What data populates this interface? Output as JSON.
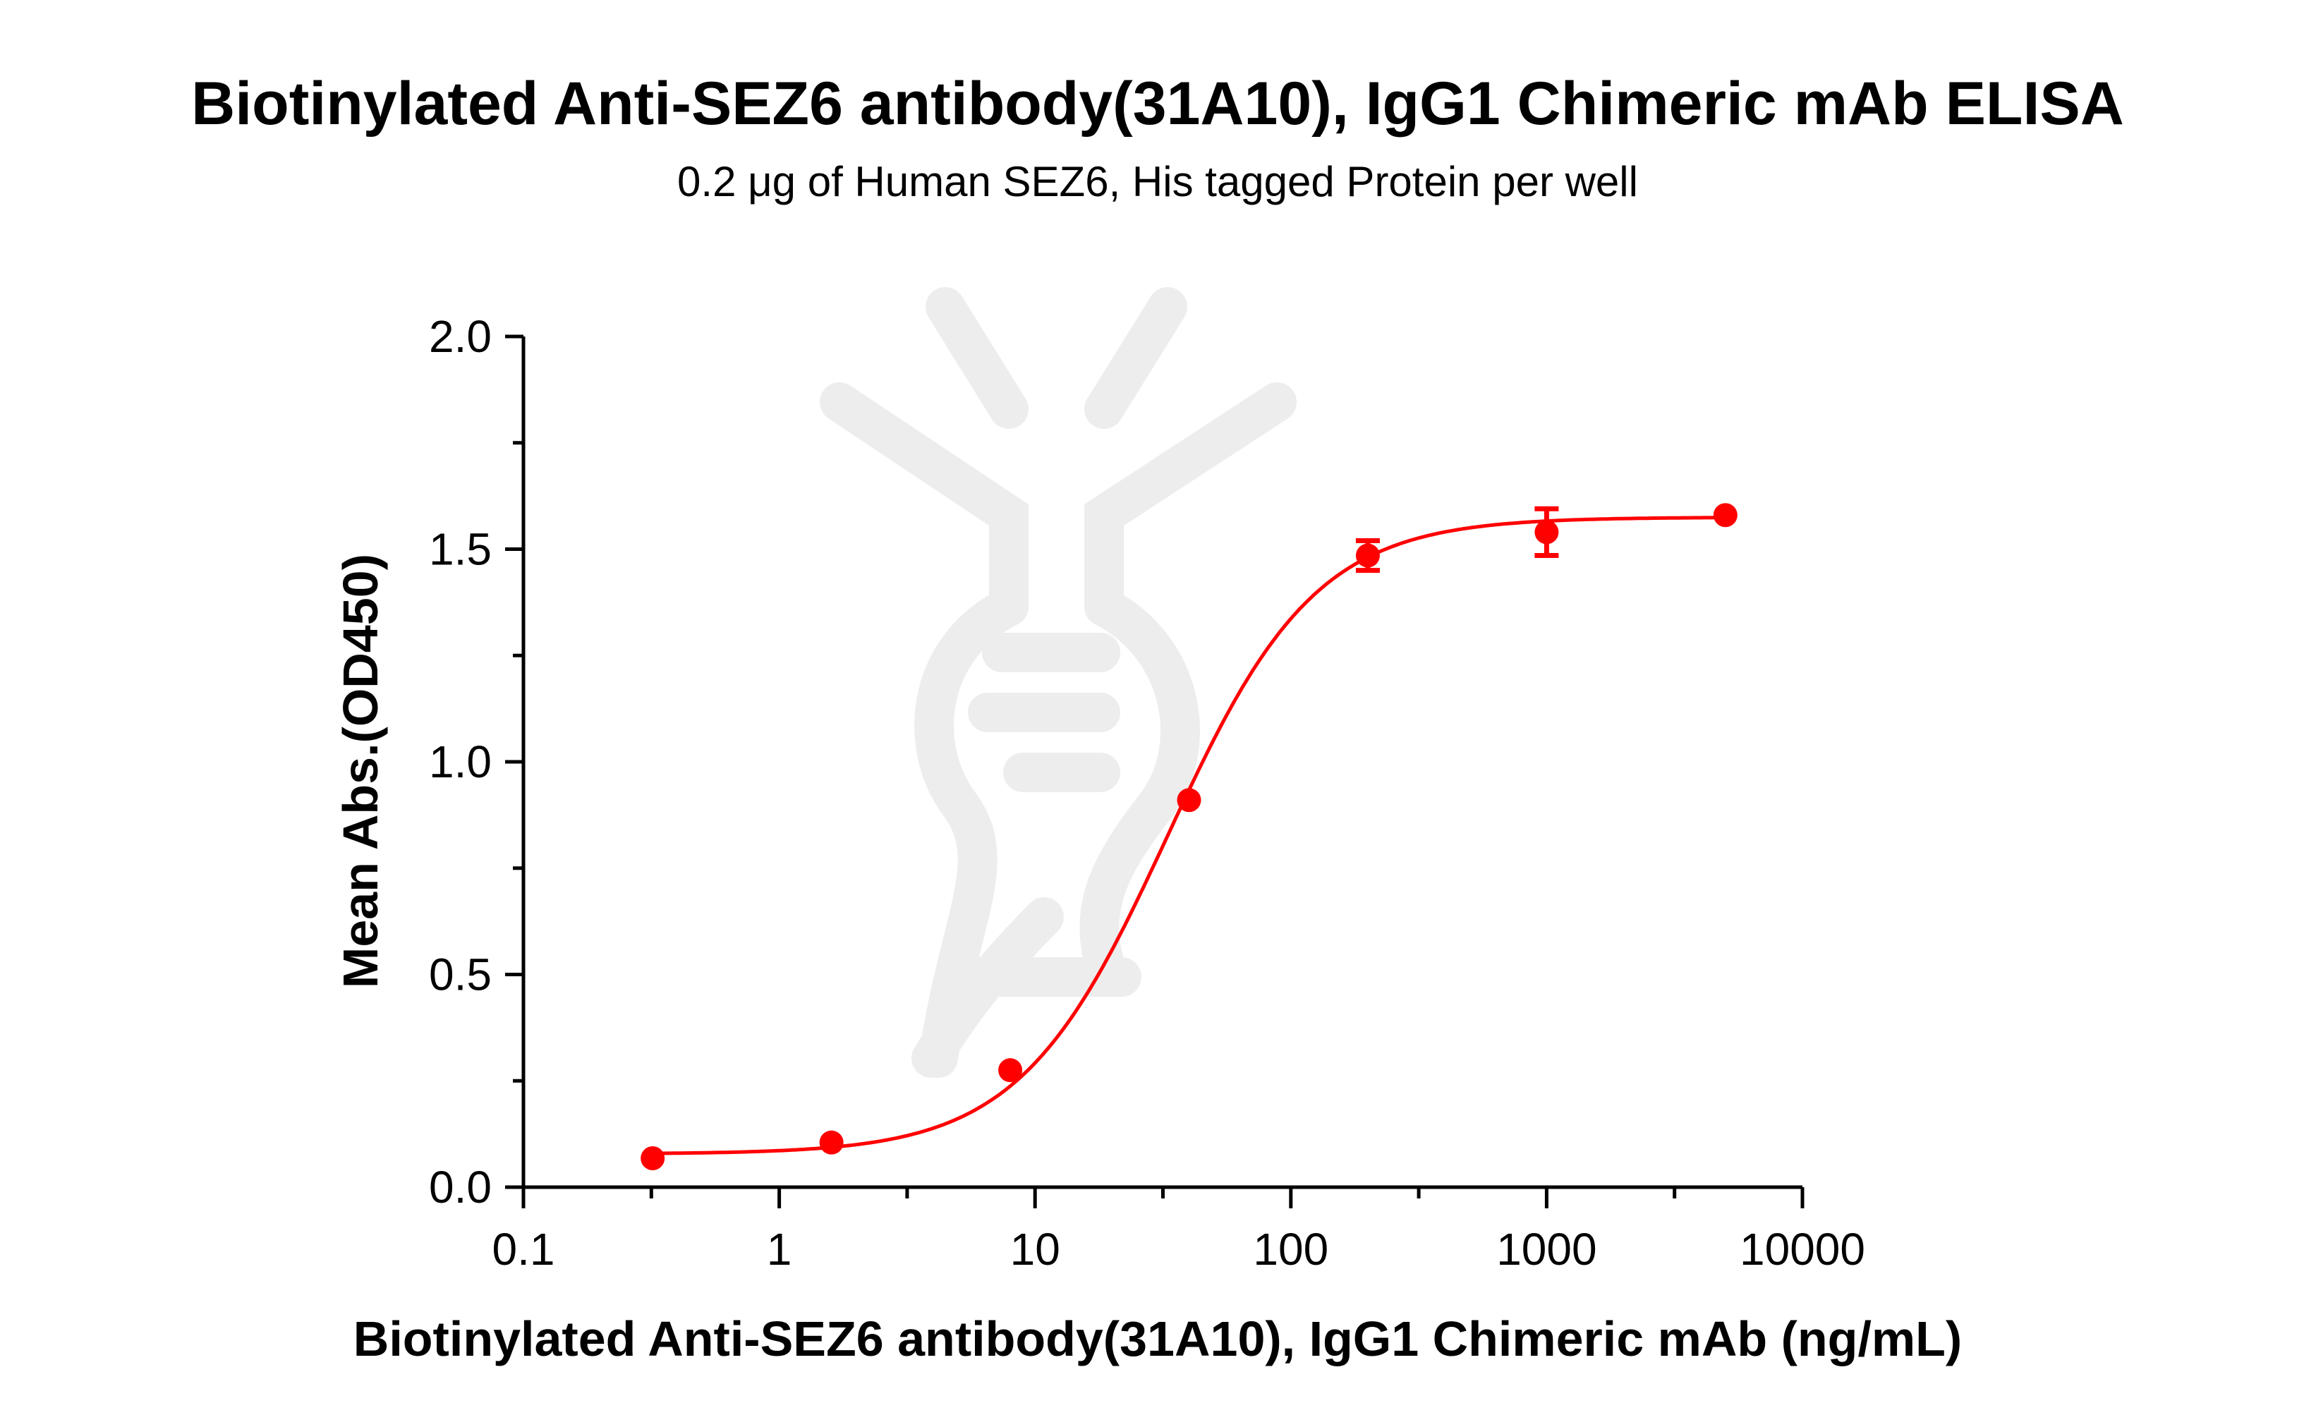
{
  "chart_data": {
    "type": "scatter",
    "title": "Biotinylated Anti-SEZ6 antibody(31A10), IgG1 Chimeric mAb ELISA",
    "subtitle": "0.2 μg of Human SEZ6, His  tagged Protein per well",
    "xlabel": "Biotinylated Anti-SEZ6 antibody(31A10), IgG1 Chimeric mAb (ng/mL)",
    "ylabel": "Mean Abs.(OD450)",
    "xscale": "log",
    "xlim": [
      0.1,
      10000
    ],
    "ylim": [
      0,
      2.0
    ],
    "x_tick_labels": [
      "0.1",
      "1",
      "10",
      "100",
      "1000",
      "10000"
    ],
    "y_tick_labels": [
      "0.0",
      "0.5",
      "1.0",
      "1.5",
      "2.0"
    ],
    "grid": false,
    "series_color": "#ff0000",
    "points": [
      {
        "x": 0.32,
        "y": 0.068,
        "err": 0
      },
      {
        "x": 1.6,
        "y": 0.105,
        "err": 0
      },
      {
        "x": 8,
        "y": 0.275,
        "err": 0
      },
      {
        "x": 40,
        "y": 0.91,
        "err": 0
      },
      {
        "x": 200,
        "y": 1.485,
        "err": 0.035
      },
      {
        "x": 1000,
        "y": 1.54,
        "err": 0.055
      },
      {
        "x": 5000,
        "y": 1.58,
        "err": 0
      }
    ],
    "fit": {
      "model": "4PL",
      "bottom": 0.078,
      "top": 1.575,
      "ec50": 33,
      "hill": 1.5
    }
  }
}
